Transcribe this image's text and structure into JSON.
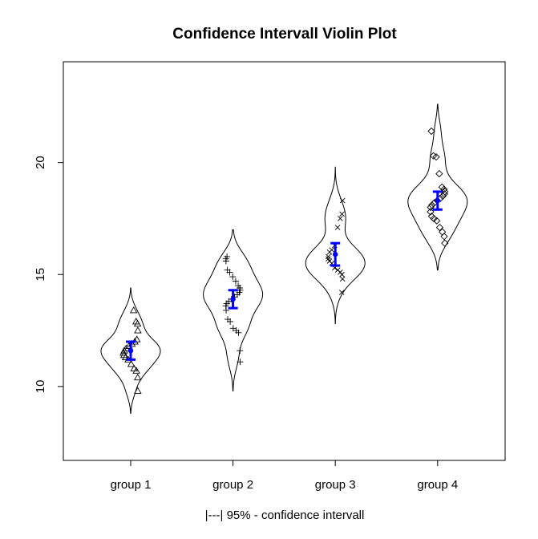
{
  "chart_data": {
    "type": "violin",
    "title": "Confidence Intervall Violin Plot",
    "xlabel": "|---| 95% - confidence intervall",
    "ylabel": "",
    "categories": [
      "group 1",
      "group 2",
      "group 3",
      "group 4"
    ],
    "ylim": [
      6.7,
      24.5
    ],
    "yticks": [
      10,
      15,
      20
    ],
    "ytick_labels": [
      "10",
      "15",
      "20"
    ],
    "ci_color": "#0000ff",
    "groups": [
      {
        "name": "group 1",
        "marker": "triangle",
        "violin_range": [
          8.8,
          14.4
        ],
        "violin_mode": 11.6,
        "points": [
          13.4,
          12.9,
          12.8,
          12.5,
          12.1,
          12.0,
          11.9,
          11.8,
          11.7,
          11.6,
          11.5,
          11.4,
          11.3,
          11.2,
          11.0,
          10.8,
          10.7,
          10.4,
          9.8
        ],
        "mean": 11.6,
        "ci": [
          11.2,
          12.0
        ]
      },
      {
        "name": "group 2",
        "marker": "plus",
        "violin_range": [
          9.8,
          17.0
        ],
        "violin_mode": 14.0,
        "points": [
          15.8,
          15.7,
          15.6,
          15.2,
          15.1,
          14.9,
          14.7,
          14.5,
          14.4,
          14.3,
          14.2,
          14.1,
          14.0,
          13.9,
          13.8,
          13.7,
          13.6,
          13.4,
          13.0,
          12.9,
          12.6,
          12.5,
          12.4,
          11.6,
          11.1
        ],
        "mean": 13.9,
        "ci": [
          13.5,
          14.3
        ]
      },
      {
        "name": "group 3",
        "marker": "cross",
        "violin_range": [
          12.8,
          19.8
        ],
        "violin_mode": 15.4,
        "points": [
          18.3,
          17.7,
          17.5,
          17.1,
          16.3,
          16.1,
          16.0,
          15.8,
          15.7,
          15.6,
          15.5,
          15.3,
          15.2,
          15.1,
          15.0,
          14.8,
          14.2
        ],
        "mean": 15.9,
        "ci": [
          15.4,
          16.4
        ]
      },
      {
        "name": "group 4",
        "marker": "diamond",
        "violin_range": [
          15.2,
          22.6
        ],
        "violin_mode": 18.3,
        "points": [
          21.4,
          20.3,
          20.25,
          19.5,
          18.9,
          18.8,
          18.7,
          18.6,
          18.5,
          18.4,
          18.3,
          18.2,
          18.1,
          18.0,
          17.8,
          17.6,
          17.5,
          17.4,
          17.1,
          16.9,
          16.7,
          16.4
        ],
        "mean": 18.3,
        "ci": [
          17.9,
          18.7
        ]
      }
    ]
  }
}
